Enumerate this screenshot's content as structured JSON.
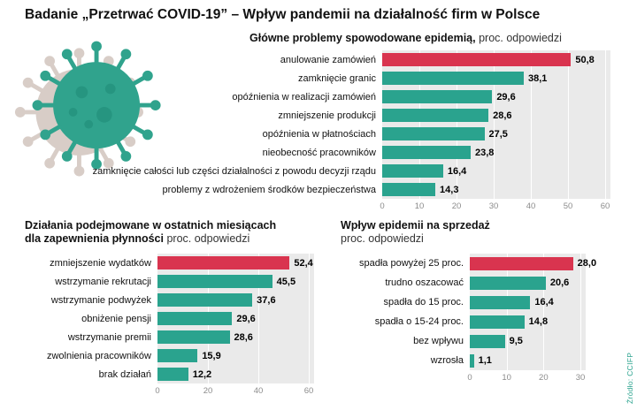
{
  "page_title": "Badanie „Przetrwać COVID-19” – Wpływ pandemii na działalność firm w Polsce",
  "source": "Źródło: CCIFP",
  "colors": {
    "red": "#d9344f",
    "teal": "#2aa38e",
    "plot_bg": "#eaeaea",
    "axis_text": "#8c8c8c",
    "virus_shadow": "#d8cdc7",
    "virus_body": "#30a38d"
  },
  "chart_data": [
    {
      "type": "bar",
      "orientation": "horizontal",
      "title_lines": [
        {
          "bold": "Główne problemy spowodowane epidemią,",
          "normal": " proc. odpowiedzi"
        }
      ],
      "categories": [
        "anulowanie zamówień",
        "zamknięcie granic",
        "opóźnienia w realizacji zamówień",
        "zmniejszenie produkcji",
        "opóźnienia w płatnościach",
        "nieobecność pracowników",
        "zamknięcie całości lub części działalności z powodu decyzji rządu",
        "problemy z wdrożeniem środków bezpieczeństwa"
      ],
      "values": [
        50.8,
        38.1,
        29.6,
        28.6,
        27.5,
        23.8,
        16.4,
        14.3
      ],
      "value_labels": [
        "50,8",
        "38,1",
        "29,6",
        "28,6",
        "27,5",
        "23,8",
        "16,4",
        "14,3"
      ],
      "highlight_index": 0,
      "xlim": [
        0,
        60
      ],
      "ticks": [
        0,
        10,
        20,
        30,
        40,
        50,
        60
      ],
      "grid": true,
      "legend": "none"
    },
    {
      "type": "bar",
      "orientation": "horizontal",
      "title_lines": [
        {
          "bold": "Działania podejmowane w ostatnich miesiącach"
        },
        {
          "bold": "dla zapewnienia płynności",
          "normal": " proc. odpowiedzi"
        }
      ],
      "categories": [
        "zmniejszenie wydatków",
        "wstrzymanie rekrutacji",
        "wstrzymanie podwyżek",
        "obniżenie pensji",
        "wstrzymanie premii",
        "zwolnienia pracowników",
        "brak działań"
      ],
      "values": [
        52.4,
        45.5,
        37.6,
        29.6,
        28.6,
        15.9,
        12.2
      ],
      "value_labels": [
        "52,4",
        "45,5",
        "37,6",
        "29,6",
        "28,6",
        "15,9",
        "12,2"
      ],
      "highlight_index": 0,
      "xlim": [
        0,
        60
      ],
      "ticks": [
        0,
        20,
        40,
        60
      ],
      "grid": true,
      "legend": "none"
    },
    {
      "type": "bar",
      "orientation": "horizontal",
      "title_lines": [
        {
          "bold": "Wpływ epidemii na sprzedaż"
        },
        {
          "normal": "proc. odpowiedzi"
        }
      ],
      "categories": [
        "spadła powyżej 25 proc.",
        "trudno oszacować",
        "spadła do 15 proc.",
        "spadła o 15-24 proc.",
        "bez wpływu",
        "wzrosła"
      ],
      "values": [
        28.0,
        20.6,
        16.4,
        14.8,
        9.5,
        1.1
      ],
      "value_labels": [
        "28,0",
        "20,6",
        "16,4",
        "14,8",
        "9,5",
        "1,1"
      ],
      "highlight_index": 0,
      "xlim": [
        0,
        30
      ],
      "ticks": [
        0,
        10,
        20,
        30
      ],
      "grid": true,
      "legend": "none"
    }
  ]
}
